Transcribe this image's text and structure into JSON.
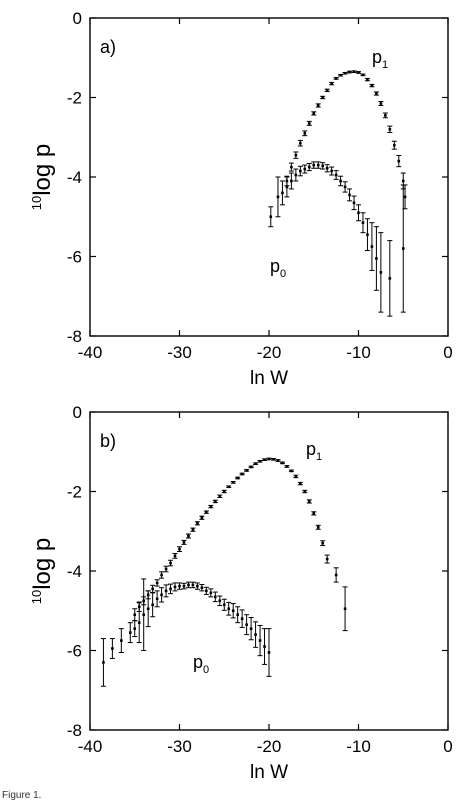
{
  "chart_data": [
    {
      "type": "scatter",
      "panel_label": "a)",
      "xlabel": "ln W",
      "ylabel": {
        "superscript": "10",
        "main": "log p"
      },
      "xlim": [
        -40,
        0
      ],
      "ylim": [
        -8,
        0
      ],
      "xticks": [
        -40,
        -30,
        -20,
        -10,
        0
      ],
      "yticks": [
        0,
        -2,
        -4,
        -6,
        -8
      ],
      "error_bars": true,
      "series": [
        {
          "name": "p",
          "subscript": "1",
          "x": [
            -18.0,
            -17.5,
            -17.0,
            -16.5,
            -16.0,
            -15.5,
            -15.0,
            -14.5,
            -14.0,
            -13.5,
            -13.0,
            -12.5,
            -12.0,
            -11.5,
            -11.0,
            -10.5,
            -10.0,
            -9.5,
            -9.0,
            -8.5,
            -8.0,
            -7.5,
            -7.0,
            -6.5,
            -6.0,
            -5.5,
            -5.0,
            -4.8
          ],
          "y": [
            -4.1,
            -3.75,
            -3.45,
            -3.15,
            -2.9,
            -2.65,
            -2.4,
            -2.2,
            -2.0,
            -1.82,
            -1.65,
            -1.52,
            -1.44,
            -1.39,
            -1.36,
            -1.35,
            -1.37,
            -1.43,
            -1.55,
            -1.7,
            -1.9,
            -2.15,
            -2.45,
            -2.8,
            -3.2,
            -3.6,
            -4.1,
            -4.5
          ],
          "err": [
            0.12,
            0.1,
            0.08,
            0.07,
            0.06,
            0.05,
            0.04,
            0.04,
            0.03,
            0.03,
            0.03,
            0.02,
            0.02,
            0.02,
            0.02,
            0.02,
            0.02,
            0.02,
            0.03,
            0.03,
            0.04,
            0.05,
            0.06,
            0.08,
            0.1,
            0.14,
            0.2,
            0.3
          ]
        },
        {
          "name": "p",
          "subscript": "0",
          "x": [
            -19.8,
            -19.0,
            -18.5,
            -18.0,
            -17.5,
            -17.0,
            -16.5,
            -16.0,
            -15.5,
            -15.0,
            -14.5,
            -14.0,
            -13.5,
            -13.0,
            -12.5,
            -12.0,
            -11.5,
            -11.0,
            -10.5,
            -10.0,
            -9.5,
            -9.0,
            -8.5,
            -8.0,
            -7.5,
            -6.5,
            -5.0
          ],
          "y": [
            -5.0,
            -4.5,
            -4.4,
            -4.25,
            -4.1,
            -3.95,
            -3.85,
            -3.8,
            -3.75,
            -3.7,
            -3.7,
            -3.72,
            -3.78,
            -3.85,
            -3.95,
            -4.1,
            -4.25,
            -4.45,
            -4.65,
            -4.9,
            -5.15,
            -5.45,
            -5.75,
            -6.05,
            -6.4,
            -6.55,
            -5.8
          ],
          "err": [
            0.25,
            0.5,
            0.3,
            0.25,
            0.2,
            0.15,
            0.12,
            0.1,
            0.09,
            0.08,
            0.08,
            0.08,
            0.09,
            0.1,
            0.11,
            0.12,
            0.13,
            0.15,
            0.17,
            0.2,
            0.25,
            0.4,
            0.6,
            0.8,
            1.0,
            0.95,
            1.6
          ]
        }
      ]
    },
    {
      "type": "scatter",
      "panel_label": "b)",
      "xlabel": "ln W",
      "ylabel": {
        "superscript": "10",
        "main": "log p"
      },
      "xlim": [
        -40,
        0
      ],
      "ylim": [
        -8,
        0
      ],
      "xticks": [
        -40,
        -30,
        -20,
        -10,
        0
      ],
      "yticks": [
        0,
        -2,
        -4,
        -6,
        -8
      ],
      "error_bars": true,
      "series": [
        {
          "name": "p",
          "subscript": "1",
          "x": [
            -35.0,
            -34.5,
            -34.0,
            -33.5,
            -33.0,
            -32.5,
            -32.0,
            -31.5,
            -31.0,
            -30.5,
            -30.0,
            -29.5,
            -29.0,
            -28.5,
            -28.0,
            -27.5,
            -27.0,
            -26.5,
            -26.0,
            -25.5,
            -25.0,
            -24.5,
            -24.0,
            -23.5,
            -23.0,
            -22.5,
            -22.0,
            -21.5,
            -21.0,
            -20.5,
            -20.0,
            -19.5,
            -19.0,
            -18.5,
            -18.0,
            -17.5,
            -17.0,
            -16.5,
            -16.0,
            -15.5,
            -15.0,
            -14.5,
            -14.0,
            -13.5,
            -12.5,
            -11.5
          ],
          "y": [
            -5.1,
            -4.9,
            -4.75,
            -4.6,
            -4.45,
            -4.3,
            -4.1,
            -3.95,
            -3.8,
            -3.62,
            -3.45,
            -3.28,
            -3.12,
            -2.96,
            -2.8,
            -2.66,
            -2.52,
            -2.38,
            -2.25,
            -2.12,
            -2.0,
            -1.88,
            -1.77,
            -1.66,
            -1.56,
            -1.47,
            -1.38,
            -1.3,
            -1.24,
            -1.2,
            -1.18,
            -1.19,
            -1.22,
            -1.28,
            -1.37,
            -1.48,
            -1.62,
            -1.8,
            -2.0,
            -2.25,
            -2.55,
            -2.9,
            -3.3,
            -3.7,
            -4.1,
            -4.95
          ],
          "err": [
            0.15,
            0.12,
            0.1,
            0.1,
            0.09,
            0.08,
            0.08,
            0.07,
            0.07,
            0.06,
            0.06,
            0.05,
            0.05,
            0.04,
            0.04,
            0.04,
            0.03,
            0.03,
            0.03,
            0.03,
            0.03,
            0.02,
            0.02,
            0.02,
            0.02,
            0.02,
            0.02,
            0.02,
            0.02,
            0.02,
            0.02,
            0.02,
            0.02,
            0.02,
            0.02,
            0.02,
            0.03,
            0.03,
            0.03,
            0.04,
            0.04,
            0.05,
            0.06,
            0.1,
            0.18,
            0.55
          ]
        },
        {
          "name": "p",
          "subscript": "0",
          "x": [
            -38.5,
            -37.5,
            -36.5,
            -35.5,
            -35.0,
            -34.5,
            -34.0,
            -33.5,
            -33.0,
            -32.5,
            -32.0,
            -31.5,
            -31.0,
            -30.5,
            -30.0,
            -29.5,
            -29.0,
            -28.5,
            -28.0,
            -27.5,
            -27.0,
            -26.5,
            -26.0,
            -25.5,
            -25.0,
            -24.5,
            -24.0,
            -23.5,
            -23.0,
            -22.5,
            -22.0,
            -21.5,
            -21.0,
            -20.5,
            -20.0
          ],
          "y": [
            -6.3,
            -5.95,
            -5.75,
            -5.55,
            -5.45,
            -5.3,
            -5.1,
            -4.95,
            -4.85,
            -4.7,
            -4.6,
            -4.5,
            -4.45,
            -4.4,
            -4.38,
            -4.38,
            -4.35,
            -4.35,
            -4.38,
            -4.42,
            -4.5,
            -4.55,
            -4.65,
            -4.75,
            -4.85,
            -4.95,
            -5.0,
            -5.1,
            -5.2,
            -5.35,
            -5.45,
            -5.6,
            -5.75,
            -5.9,
            -6.05
          ],
          "err": [
            0.6,
            0.25,
            0.3,
            0.25,
            0.2,
            0.5,
            0.9,
            0.45,
            0.3,
            0.2,
            0.18,
            0.15,
            0.12,
            0.1,
            0.08,
            0.07,
            0.07,
            0.07,
            0.08,
            0.08,
            0.09,
            0.1,
            0.12,
            0.12,
            0.14,
            0.16,
            0.18,
            0.2,
            0.22,
            0.25,
            0.28,
            0.32,
            0.38,
            0.45,
            0.6
          ]
        }
      ]
    }
  ],
  "caption_fragment": "Figure 1."
}
